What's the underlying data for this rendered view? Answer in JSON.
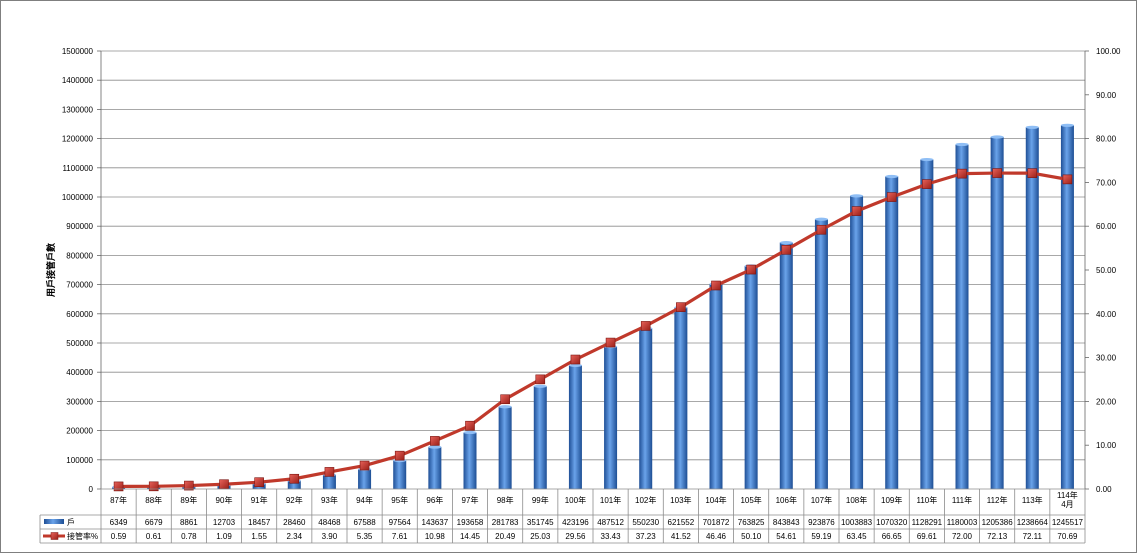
{
  "chart_data": {
    "type": "bar",
    "categories": [
      "87年",
      "88年",
      "89年",
      "90年",
      "91年",
      "92年",
      "93年",
      "94年",
      "95年",
      "96年",
      "97年",
      "98年",
      "99年",
      "100年",
      "101年",
      "102年",
      "103年",
      "104年",
      "105年",
      "106年",
      "107年",
      "108年",
      "109年",
      "110年",
      "111年",
      "112年",
      "113年",
      "114年\n4月"
    ],
    "series": [
      {
        "name": "戶",
        "type": "bar",
        "axis": "left",
        "color": "#3a7bd5",
        "values": [
          6349,
          6679,
          8861,
          12703,
          18457,
          28460,
          48468,
          67588,
          97564,
          143637,
          193658,
          281783,
          351745,
          423196,
          487512,
          550230,
          621552,
          701872,
          763825,
          843843,
          923876,
          1003883,
          1070320,
          1128291,
          1180003,
          1205386,
          1238664,
          1245517
        ]
      },
      {
        "name": "接管率%",
        "type": "line",
        "axis": "right",
        "color": "#c0392b",
        "values": [
          0.59,
          0.61,
          0.78,
          1.09,
          1.55,
          2.34,
          3.9,
          5.35,
          7.61,
          10.98,
          14.45,
          20.49,
          25.03,
          29.56,
          33.43,
          37.23,
          41.52,
          46.46,
          50.1,
          54.61,
          59.19,
          63.45,
          66.65,
          69.61,
          72.0,
          72.13,
          72.11,
          70.69
        ]
      }
    ],
    "table_values": {
      "bar": [
        "6349",
        "6679",
        "8861",
        "12703",
        "18457",
        "28460",
        "48468",
        "67588",
        "97564",
        "143637",
        "193658",
        "281783",
        "351745",
        "423196",
        "487512",
        "550230",
        "621552",
        "701872",
        "763825",
        "843843",
        "923876",
        "1003883",
        "1070320",
        "1128291",
        "1180003",
        "1205386",
        "1238664",
        "1245517"
      ],
      "line": [
        "0.59",
        "0.61",
        "0.78",
        "1.09",
        "1.55",
        "2.34",
        "3.90",
        "5.35",
        "7.61",
        "10.98",
        "14.45",
        "20.49",
        "25.03",
        "29.56",
        "33.43",
        "37.23",
        "41.52",
        "46.46",
        "50.10",
        "54.61",
        "59.19",
        "63.45",
        "66.65",
        "69.61",
        "72.00",
        "72.13",
        "72.11",
        "70.69"
      ]
    },
    "ylabel": "用戶接管戶數",
    "y_left": {
      "min": 0,
      "max": 1500000,
      "step": 100000,
      "ticks": [
        "0",
        "100000",
        "200000",
        "300000",
        "400000",
        "500000",
        "600000",
        "700000",
        "800000",
        "900000",
        "1000000",
        "1100000",
        "1200000",
        "1300000",
        "1400000",
        "1500000"
      ]
    },
    "y_right": {
      "min": 0,
      "max": 100,
      "step": 10,
      "ticks": [
        "0.00",
        "10.00",
        "20.00",
        "30.00",
        "40.00",
        "50.00",
        "60.00",
        "70.00",
        "80.00",
        "90.00",
        "100.00"
      ]
    },
    "grid": true,
    "legend": "data-table"
  }
}
